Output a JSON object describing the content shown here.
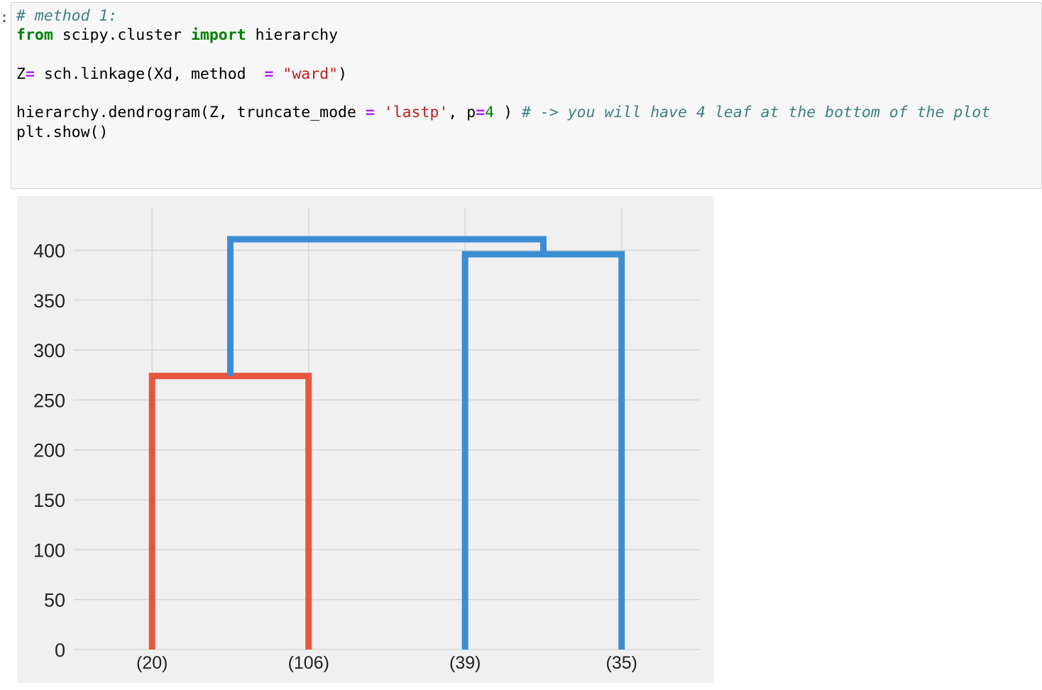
{
  "code": {
    "lines": [
      [
        {
          "cls": "comment",
          "text": "# method 1:"
        }
      ],
      [
        {
          "cls": "keyword",
          "text": "from"
        },
        {
          "cls": "plain",
          "text": " scipy.cluster "
        },
        {
          "cls": "keyword",
          "text": "import"
        },
        {
          "cls": "plain",
          "text": " hierarchy"
        }
      ],
      [],
      [
        {
          "cls": "plain",
          "text": "Z"
        },
        {
          "cls": "op",
          "text": "="
        },
        {
          "cls": "plain",
          "text": " sch.linkage(Xd, method  "
        },
        {
          "cls": "op",
          "text": "="
        },
        {
          "cls": "plain",
          "text": " "
        },
        {
          "cls": "string",
          "text": "\"ward\""
        },
        {
          "cls": "plain",
          "text": ")"
        }
      ],
      [],
      [
        {
          "cls": "plain",
          "text": "hierarchy.dendrogram(Z, truncate_mode "
        },
        {
          "cls": "op",
          "text": "="
        },
        {
          "cls": "plain",
          "text": " "
        },
        {
          "cls": "string",
          "text": "'lastp'"
        },
        {
          "cls": "plain",
          "text": ", p"
        },
        {
          "cls": "op",
          "text": "="
        },
        {
          "cls": "number",
          "text": "4"
        },
        {
          "cls": "plain",
          "text": " ) "
        },
        {
          "cls": "comment",
          "text": "# -> you will have 4 leaf at the bottom of the plot"
        }
      ],
      [
        {
          "cls": "plain",
          "text": "plt.show()"
        }
      ]
    ]
  },
  "chart_data": {
    "type": "dendrogram",
    "title": "",
    "xlabel": "",
    "ylabel": "",
    "ylim": [
      0,
      443
    ],
    "yticks": [
      0,
      50,
      100,
      150,
      200,
      250,
      300,
      350,
      400
    ],
    "leaves": [
      "(20)",
      "(106)",
      "(39)",
      "(35)"
    ],
    "links": [
      {
        "name": "link-leaf20-leaf106",
        "color": "#e8573d",
        "x": [
          5,
          5,
          15,
          15
        ],
        "y": [
          0,
          274,
          274,
          0
        ]
      },
      {
        "name": "link-leaf39-leaf35",
        "color": "#3b8ed4",
        "x": [
          25,
          25,
          35,
          35
        ],
        "y": [
          0,
          396,
          396,
          0
        ]
      },
      {
        "name": "link-root",
        "color": "#3b8ed4",
        "x": [
          10,
          10,
          30,
          30
        ],
        "y": [
          274,
          411,
          411,
          396
        ]
      }
    ],
    "grid": true,
    "colors": {
      "background": "#f0f0f0",
      "grid": "#d2d2d2",
      "tick_text": "#222222"
    }
  }
}
